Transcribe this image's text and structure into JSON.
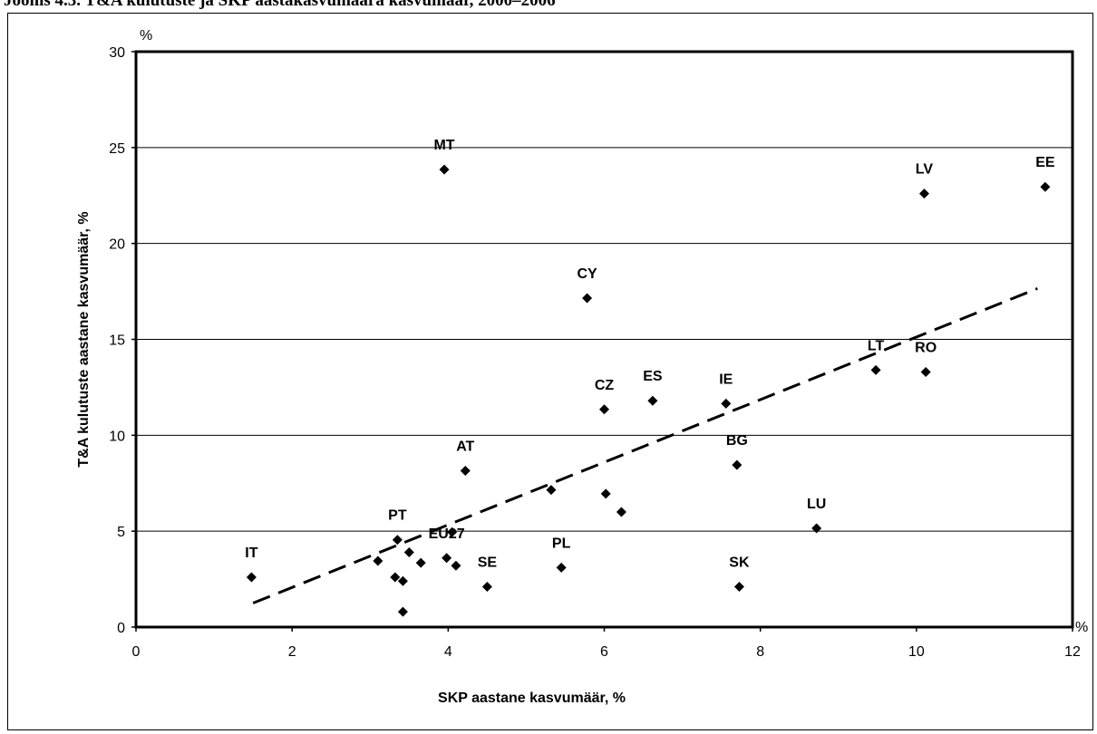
{
  "header_text": "Joonis 4.3. T&A kulutuste ja SKP aastakasvumäära kasvumäär, 2000–2006",
  "chart_data": {
    "type": "scatter",
    "xlabel": "SKP  aastane kasvumäär, %",
    "ylabel": "T&A kulutuste aastane kasvumäär, %",
    "x_unit": "%",
    "y_unit": "%",
    "xlim": [
      0,
      12
    ],
    "ylim": [
      0,
      30
    ],
    "x_ticks": [
      0,
      2,
      4,
      6,
      8,
      10,
      12
    ],
    "y_ticks": [
      0,
      5,
      10,
      15,
      20,
      25,
      30
    ],
    "grid": "horizontal",
    "points": [
      {
        "label": "MT",
        "x": 3.95,
        "y": 23.85
      },
      {
        "label": "LV",
        "x": 10.1,
        "y": 22.6
      },
      {
        "label": "EE",
        "x": 11.65,
        "y": 22.95
      },
      {
        "label": "CY",
        "x": 5.78,
        "y": 17.15
      },
      {
        "label": "LT",
        "x": 9.48,
        "y": 13.4
      },
      {
        "label": "RO",
        "x": 10.12,
        "y": 13.3
      },
      {
        "label": "ES",
        "x": 6.62,
        "y": 11.8
      },
      {
        "label": "IE",
        "x": 7.56,
        "y": 11.65
      },
      {
        "label": "CZ",
        "x": 6.0,
        "y": 11.35
      },
      {
        "label": "AT",
        "x": 4.22,
        "y": 8.15
      },
      {
        "label": "BG",
        "x": 7.7,
        "y": 8.45
      },
      {
        "label": "LU",
        "x": 8.72,
        "y": 5.15
      },
      {
        "label": "IT",
        "x": 1.48,
        "y": 2.6
      },
      {
        "label": "PT",
        "x": 3.35,
        "y": 4.55
      },
      {
        "label": "EU27",
        "x": 3.98,
        "y": 3.6
      },
      {
        "label": "SE",
        "x": 4.5,
        "y": 2.1
      },
      {
        "label": "PL",
        "x": 5.45,
        "y": 3.1
      },
      {
        "label": "SK",
        "x": 7.73,
        "y": 2.1
      },
      {
        "label": "",
        "x": 5.32,
        "y": 7.15
      },
      {
        "label": "",
        "x": 6.02,
        "y": 6.95
      },
      {
        "label": "",
        "x": 6.22,
        "y": 6.0
      },
      {
        "label": "",
        "x": 4.05,
        "y": 4.95
      },
      {
        "label": "",
        "x": 3.5,
        "y": 3.9
      },
      {
        "label": "",
        "x": 3.1,
        "y": 3.45
      },
      {
        "label": "",
        "x": 3.65,
        "y": 3.35
      },
      {
        "label": "",
        "x": 4.1,
        "y": 3.2
      },
      {
        "label": "",
        "x": 3.32,
        "y": 2.6
      },
      {
        "label": "",
        "x": 3.42,
        "y": 2.4
      },
      {
        "label": "",
        "x": 3.42,
        "y": 0.8
      }
    ],
    "trendline": {
      "style": "dashed",
      "x": [
        1.5,
        11.55
      ],
      "y": [
        1.25,
        17.65
      ]
    }
  }
}
